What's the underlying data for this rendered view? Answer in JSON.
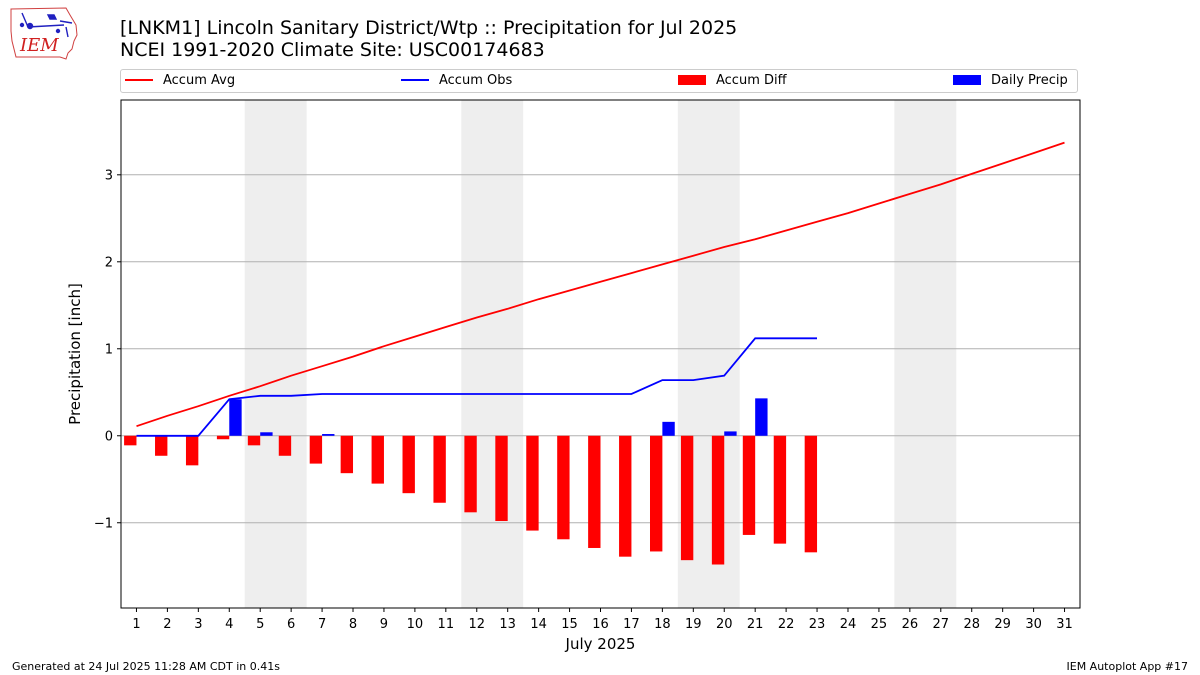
{
  "logo": {
    "text": "IEM",
    "icon": "iowa-state-outline-icon"
  },
  "title": {
    "line1": "[LNKM1] Lincoln Sanitary District/Wtp :: Precipitation for Jul 2025",
    "line2": "NCEI 1991-2020 Climate Site: USC00174683"
  },
  "legend": {
    "items": [
      {
        "label": "Accum Avg",
        "color": "#ff0000",
        "kind": "line"
      },
      {
        "label": "Accum Obs",
        "color": "#0000ff",
        "kind": "line"
      },
      {
        "label": "Accum Diff",
        "color": "#ff0000",
        "kind": "bar"
      },
      {
        "label": "Daily Precip",
        "color": "#0000ff",
        "kind": "bar"
      }
    ]
  },
  "footer": {
    "left": "Generated at 24 Jul 2025 11:28 AM CDT in 0.41s",
    "right": "IEM Autoplot App #17"
  },
  "chart_data": {
    "type": "bar",
    "title": "[LNKM1] Lincoln Sanitary District/Wtp :: Precipitation for Jul 2025",
    "subtitle": "NCEI 1991-2020 Climate Site: USC00174683",
    "xlabel": "July 2025",
    "ylabel": "Precipitation [inch]",
    "xlim": [
      0.5,
      31.5
    ],
    "ylim": [
      -1.98,
      3.86
    ],
    "yticks": [
      -1,
      0,
      1,
      2,
      3
    ],
    "ytick_labels": [
      "−1",
      "0",
      "1",
      "2",
      "3"
    ],
    "grid": "horizontal",
    "legend_position": "top",
    "weekend_bands": [
      [
        4.5,
        6.5
      ],
      [
        11.5,
        13.5
      ],
      [
        18.5,
        20.5
      ],
      [
        25.5,
        27.5
      ]
    ],
    "days": [
      1,
      2,
      3,
      4,
      5,
      6,
      7,
      8,
      9,
      10,
      11,
      12,
      13,
      14,
      15,
      16,
      17,
      18,
      19,
      20,
      21,
      22,
      23,
      24,
      25,
      26,
      27,
      28,
      29,
      30,
      31
    ],
    "series": [
      {
        "name": "Accum Avg",
        "kind": "line",
        "color": "#ff0000",
        "x": [
          1,
          2,
          3,
          4,
          5,
          6,
          7,
          8,
          9,
          10,
          11,
          12,
          13,
          14,
          15,
          16,
          17,
          18,
          19,
          20,
          21,
          22,
          23,
          24,
          25,
          26,
          27,
          28,
          29,
          30,
          31
        ],
        "values": [
          0.11,
          0.23,
          0.34,
          0.46,
          0.57,
          0.69,
          0.8,
          0.91,
          1.03,
          1.14,
          1.25,
          1.36,
          1.46,
          1.57,
          1.67,
          1.77,
          1.87,
          1.97,
          2.07,
          2.17,
          2.26,
          2.36,
          2.46,
          2.56,
          2.67,
          2.78,
          2.89,
          3.01,
          3.13,
          3.25,
          3.37
        ]
      },
      {
        "name": "Accum Obs",
        "kind": "line",
        "color": "#0000ff",
        "x": [
          1,
          2,
          3,
          4,
          5,
          6,
          7,
          8,
          9,
          10,
          11,
          12,
          13,
          14,
          15,
          16,
          17,
          18,
          19,
          20,
          21,
          22,
          23
        ],
        "values": [
          0,
          0,
          0,
          0.42,
          0.46,
          0.46,
          0.48,
          0.48,
          0.48,
          0.48,
          0.48,
          0.48,
          0.48,
          0.48,
          0.48,
          0.48,
          0.48,
          0.64,
          0.64,
          0.69,
          1.12,
          1.12,
          1.12
        ]
      },
      {
        "name": "Accum Diff",
        "kind": "bar",
        "color": "#ff0000",
        "x": [
          1,
          2,
          3,
          4,
          5,
          6,
          7,
          8,
          9,
          10,
          11,
          12,
          13,
          14,
          15,
          16,
          17,
          18,
          19,
          20,
          21,
          22,
          23
        ],
        "values": [
          -0.11,
          -0.23,
          -0.34,
          -0.04,
          -0.11,
          -0.23,
          -0.32,
          -0.43,
          -0.55,
          -0.66,
          -0.77,
          -0.88,
          -0.98,
          -1.09,
          -1.19,
          -1.29,
          -1.39,
          -1.33,
          -1.43,
          -1.48,
          -1.14,
          -1.24,
          -1.34
        ]
      },
      {
        "name": "Daily Precip",
        "kind": "bar",
        "color": "#0000ff",
        "x": [
          1,
          2,
          3,
          4,
          5,
          6,
          7,
          8,
          9,
          10,
          11,
          12,
          13,
          14,
          15,
          16,
          17,
          18,
          19,
          20,
          21,
          22,
          23
        ],
        "values": [
          0,
          0,
          0,
          0.42,
          0.04,
          0,
          0.02,
          0,
          0,
          0,
          0,
          0,
          0,
          0,
          0,
          0,
          0,
          0.16,
          0,
          0.05,
          0.43,
          0,
          0
        ]
      }
    ]
  }
}
